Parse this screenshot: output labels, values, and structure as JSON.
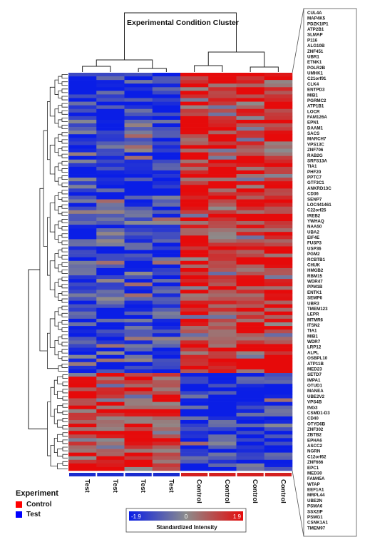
{
  "chart_data": {
    "type": "heatmap",
    "title": "Experimental Condition Cluster",
    "columns": [
      "Test",
      "Test",
      "Test",
      "Test",
      "Control",
      "Control",
      "Control",
      "Control"
    ],
    "genes": [
      "CUL4A",
      "MAP4K5",
      "PDZK1IP1",
      "ATP2B1",
      "SLMAP",
      "P116",
      "ALG10B",
      "ZNF451",
      "UBR1",
      "ETNK1",
      "POLR2B",
      "UMHK1",
      "C21orf91",
      "CLK4",
      "ENTPD3",
      "MIB1",
      "PGRMC2",
      "ATP1B1",
      "LOCR",
      "FAM126A",
      "EPN1",
      "DAAM1",
      "SACS",
      "MARCH7",
      "VPS13C",
      "ZNF706",
      "RAB2G",
      "SRFS13A",
      "TIA1",
      "PHF20",
      "PPTC7",
      "GTF3C1",
      "ANKRD13C",
      "CD36",
      "SENP7",
      "LOC441461",
      "C22orf25",
      "IREB2",
      "YWHAQ",
      "NAA50",
      "UBA2",
      "EIF4E",
      "FUSP3",
      "USP36",
      "PGM2",
      "RCBTB1",
      "CHUK",
      "HMGB2",
      "RBM15",
      "WDR47",
      "PPM1B",
      "ENTK1",
      "SEMP6",
      "UBR3",
      "TMEM123",
      "LEPR",
      "MTMR6",
      "ITSN2",
      "TIA1",
      "MIB1",
      "WDR7",
      "LRP12",
      "ALPL",
      "OSBPL10",
      "ATP11B",
      "MED23",
      "SETD7",
      "IMPA1",
      "OTUD1",
      "MANEA",
      "UBE2V2",
      "VPS4B",
      "ING3",
      "CSMD1-D3",
      "CD40",
      "OTYD6B",
      "ZNF302",
      "ZBTB2",
      "EPHA6",
      "ASCC2",
      "NGRN",
      "C12orf62",
      "ZNF666",
      "EPC1",
      "MED30",
      "FAM45A",
      "WTAP",
      "EEF1A1",
      "MRPL44",
      "UBE2N",
      "PSMA6",
      "SSX2IP",
      "PSMG1",
      "CSNK1A1",
      "TMEM97"
    ],
    "group_split": 72,
    "colorbar": {
      "min": "-1.9",
      "mid": "0",
      "max": "1.9",
      "label": "Standardized Intensity"
    },
    "colors": {
      "low": "#0a1ee6",
      "mid": "#8c8c8c",
      "high": "#e60a0a"
    }
  },
  "legend": {
    "title": "Experiment",
    "items": [
      {
        "label": "Control",
        "color": "#ff0000"
      },
      {
        "label": "Test",
        "color": "#0000ff"
      }
    ]
  }
}
